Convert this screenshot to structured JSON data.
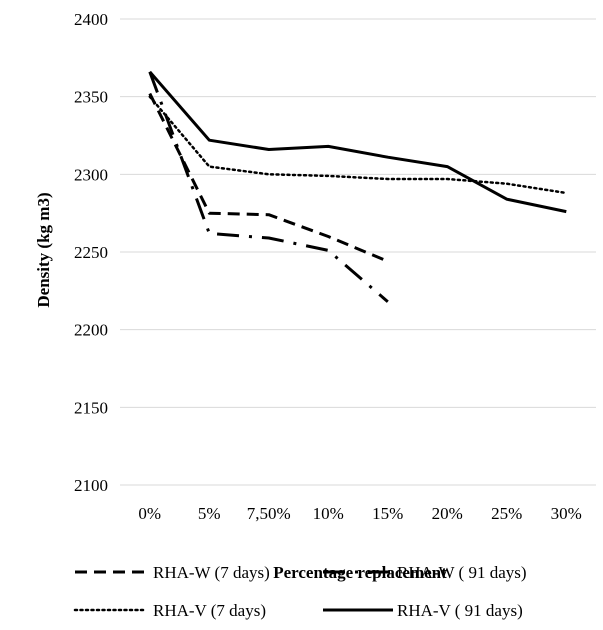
{
  "chart_data": {
    "type": "line",
    "title": "",
    "xlabel": "Percentage replacement",
    "ylabel": "Density (kg m3)",
    "categories": [
      "0%",
      "5%",
      "7,50%",
      "10%",
      "15%",
      "20%",
      "25%",
      "30%"
    ],
    "yticks": [
      "2100",
      "2150",
      "2200",
      "2250",
      "2300",
      "2350",
      "2400"
    ],
    "ylim": [
      2100,
      2400
    ],
    "grid": true,
    "legend_position": "bottom",
    "series": [
      {
        "name": "RHA-W (7 days)",
        "style": "dashed",
        "values": [
          2352,
          2275,
          2274,
          2260,
          2244,
          null,
          null,
          null
        ]
      },
      {
        "name": "RHA-W ( 91 days)",
        "style": "dash-dot",
        "values": [
          2366,
          2262,
          2259,
          2251,
          2218,
          null,
          null,
          null
        ]
      },
      {
        "name": "RHA-V (7 days)",
        "style": "dotted",
        "values": [
          2350,
          2305,
          2300,
          2299,
          2297,
          2297,
          2294,
          2288
        ]
      },
      {
        "name": "RHA-V ( 91 days)",
        "style": "solid",
        "values": [
          2366,
          2322,
          2316,
          2318,
          2311,
          2305,
          2284,
          2276
        ]
      }
    ],
    "colors": {
      "line": "#000000",
      "grid": "#d9d9d9"
    }
  }
}
